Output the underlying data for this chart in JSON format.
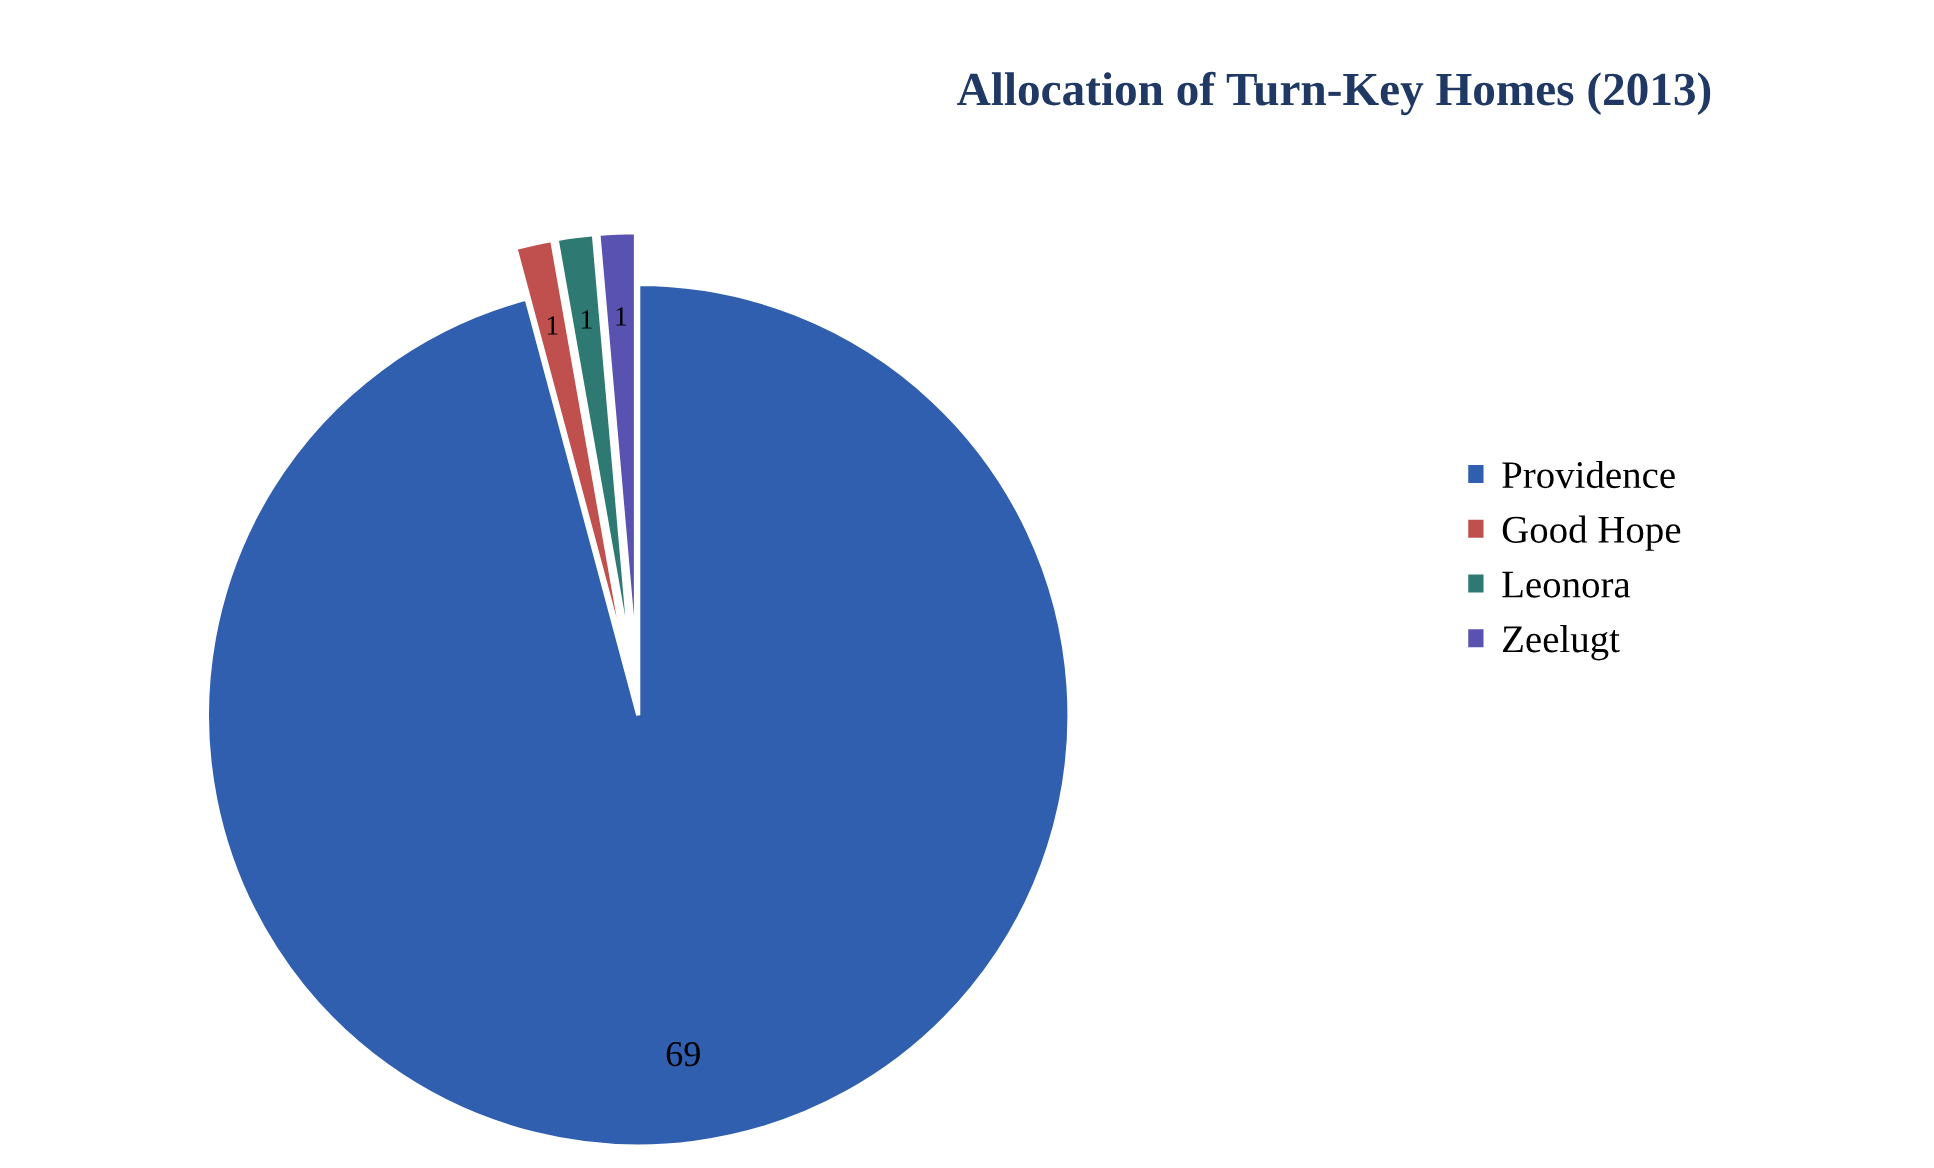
{
  "chart_data": {
    "type": "pie",
    "title": "Allocation of Turn-Key Homes (2013)",
    "categories": [
      "Providence",
      "Good Hope",
      "Leonora",
      "Zeelugt"
    ],
    "values": [
      69,
      1,
      1,
      1
    ],
    "colors": [
      "#2f5fae",
      "#c0504d",
      "#2e7a72",
      "#5a52b0"
    ],
    "data_labels": true,
    "legend": "right"
  }
}
